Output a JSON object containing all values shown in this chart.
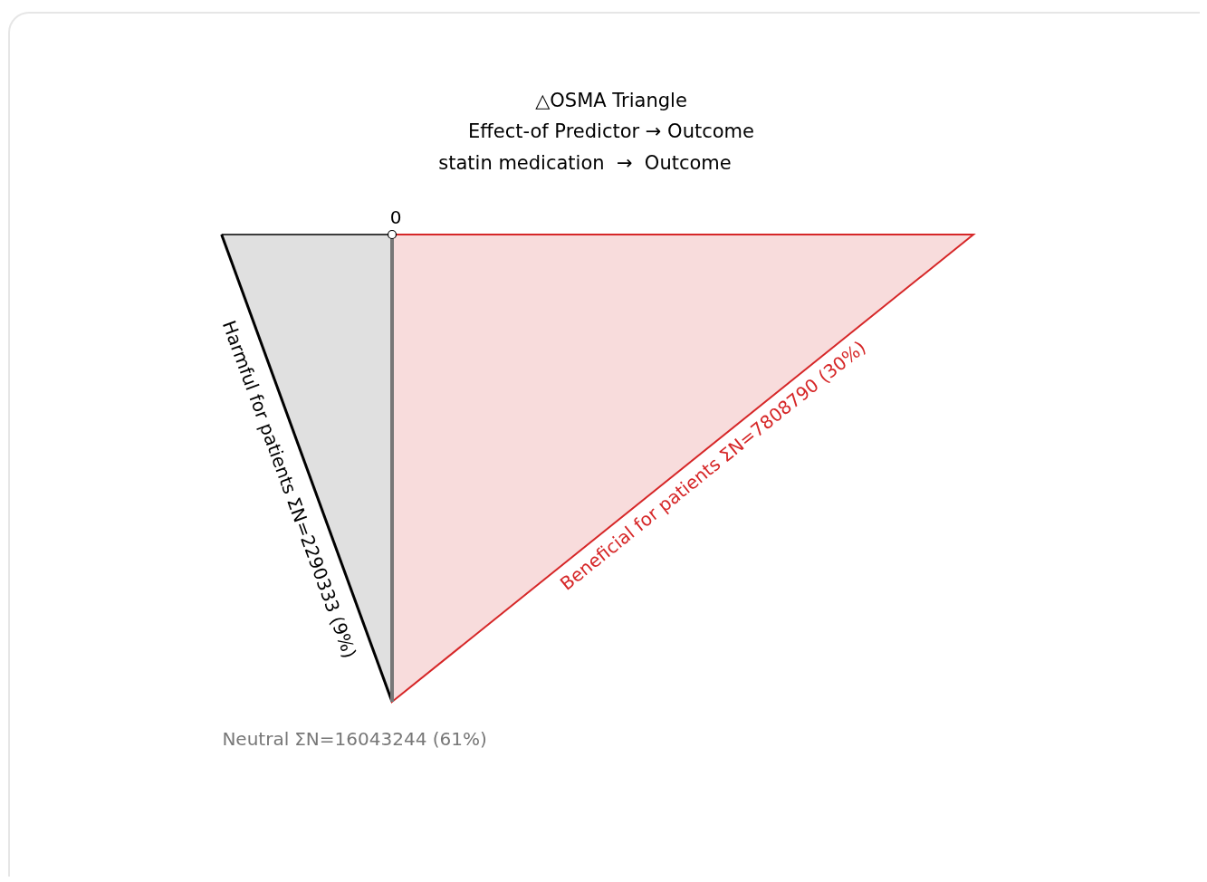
{
  "chart_data": {
    "type": "other",
    "title": "△OSMA Triangle",
    "subtitle": "Effect-of Predictor → Outcome\nstatin medication  →  Outcome",
    "categories": [
      "Harmful for patients",
      "Neutral",
      "Beneficial for patients"
    ],
    "values": [
      2290333,
      16043244,
      7808790
    ],
    "value_labels": [
      "ΣN=2290333 (9%)",
      "ΣN=16043244 (61%)",
      "ΣN=7808790 (30%)"
    ],
    "colors": [
      "#000000",
      "#777777",
      "#d62728"
    ],
    "annotations": [
      "0"
    ]
  }
}
